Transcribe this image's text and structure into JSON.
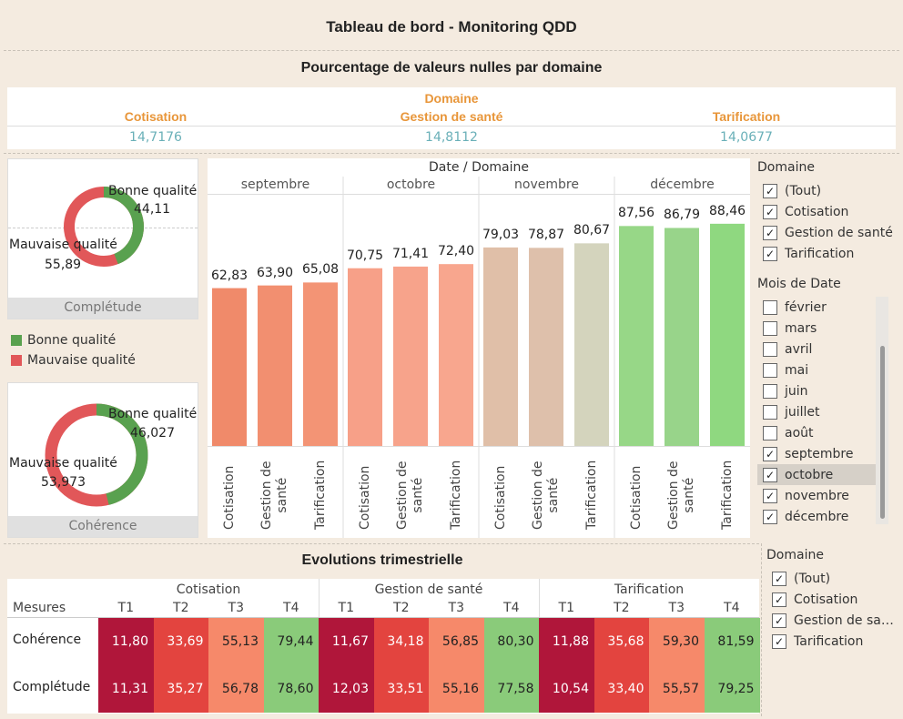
{
  "dashboard_title": "Tableau de bord - Monitoring QDD",
  "nulls": {
    "title": "Pourcentage de valeurs nulles par domaine",
    "group_header": "Domaine",
    "columns": [
      {
        "name": "Cotisation",
        "value": "14,7176"
      },
      {
        "name": "Gestion de santé",
        "value": "14,8112"
      },
      {
        "name": "Tarification",
        "value": "14,0677"
      }
    ]
  },
  "donuts": [
    {
      "footer": "Complétude",
      "good_label": "Bonne qualité",
      "good_value": "44,11",
      "bad_label": "Mauvaise qualité",
      "bad_value": "55,89",
      "good_fraction": 0.4411
    },
    {
      "footer": "Cohérence",
      "good_label": "Bonne qualité",
      "good_value": "46,027",
      "bad_label": "Mauvaise qualité",
      "bad_value": "53,973",
      "good_fraction": 0.46027
    }
  ],
  "legend": [
    {
      "label": "Bonne qualité",
      "color": "#59a14f"
    },
    {
      "label": "Mauvaise qualité",
      "color": "#e15759"
    }
  ],
  "chart_data": {
    "type": "bar",
    "title": "Date / Domaine",
    "ylim": [
      0,
      100
    ],
    "months": [
      "septembre",
      "octobre",
      "novembre",
      "décembre"
    ],
    "categories": [
      "Cotisation",
      "Gestion de\nsanté",
      "Tarification"
    ],
    "values": [
      [
        62.83,
        63.9,
        65.08
      ],
      [
        70.75,
        71.41,
        72.4
      ],
      [
        79.03,
        78.87,
        80.67
      ],
      [
        87.56,
        86.79,
        88.46
      ]
    ],
    "labels": [
      [
        "62,83",
        "63,90",
        "65,08"
      ],
      [
        "70,75",
        "71,41",
        "72,40"
      ],
      [
        "79,03",
        "78,87",
        "80,67"
      ],
      [
        "87,56",
        "86,79",
        "88,46"
      ]
    ],
    "colors": [
      [
        "#f08a6a",
        "#f28f70",
        "#f39475"
      ],
      [
        "#f7a088",
        "#f7a38b",
        "#f8a68e"
      ],
      [
        "#e0bfa8",
        "#dec0ab",
        "#d4d4bd"
      ],
      [
        "#97d787",
        "#98d48a",
        "#8fd880"
      ]
    ]
  },
  "filters": {
    "domaine": {
      "title": "Domaine",
      "items": [
        {
          "label": "(Tout)",
          "checked": true
        },
        {
          "label": "Cotisation",
          "checked": true
        },
        {
          "label": "Gestion de santé",
          "checked": true
        },
        {
          "label": "Tarification",
          "checked": true
        }
      ]
    },
    "mois": {
      "title": "Mois de Date",
      "items": [
        {
          "label": "février",
          "checked": false
        },
        {
          "label": "mars",
          "checked": false
        },
        {
          "label": "avril",
          "checked": false
        },
        {
          "label": "mai",
          "checked": false
        },
        {
          "label": "juin",
          "checked": false
        },
        {
          "label": "juillet",
          "checked": false
        },
        {
          "label": "août",
          "checked": false
        },
        {
          "label": "septembre",
          "checked": true
        },
        {
          "label": "octobre",
          "checked": true,
          "selected": true
        },
        {
          "label": "novembre",
          "checked": true
        },
        {
          "label": "décembre",
          "checked": true
        }
      ]
    },
    "domaine2": {
      "title": "Domaine",
      "items": [
        {
          "label": "(Tout)",
          "checked": true
        },
        {
          "label": "Cotisation",
          "checked": true
        },
        {
          "label": "Gestion de sa…",
          "checked": true
        },
        {
          "label": "Tarification",
          "checked": true
        }
      ]
    }
  },
  "evolutions": {
    "title": "Evolutions trimestrielle",
    "measures_label": "Mesures",
    "groups": [
      "Cotisation",
      "Gestion de santé",
      "Tarification"
    ],
    "quarters": [
      "T1",
      "T2",
      "T3",
      "T4"
    ],
    "rows": [
      {
        "label": "Cohérence",
        "values": [
          "11,80",
          "33,69",
          "55,13",
          "79,44",
          "11,67",
          "34,18",
          "56,85",
          "80,30",
          "11,88",
          "35,68",
          "59,30",
          "81,59"
        ]
      },
      {
        "label": "Complétude",
        "values": [
          "11,31",
          "35,27",
          "56,78",
          "78,60",
          "12,03",
          "33,51",
          "55,16",
          "77,58",
          "10,54",
          "33,40",
          "55,57",
          "79,25"
        ]
      }
    ],
    "quarter_colors": [
      "#b0163a",
      "#e3443f",
      "#f6896a",
      "#8acb7a"
    ]
  }
}
